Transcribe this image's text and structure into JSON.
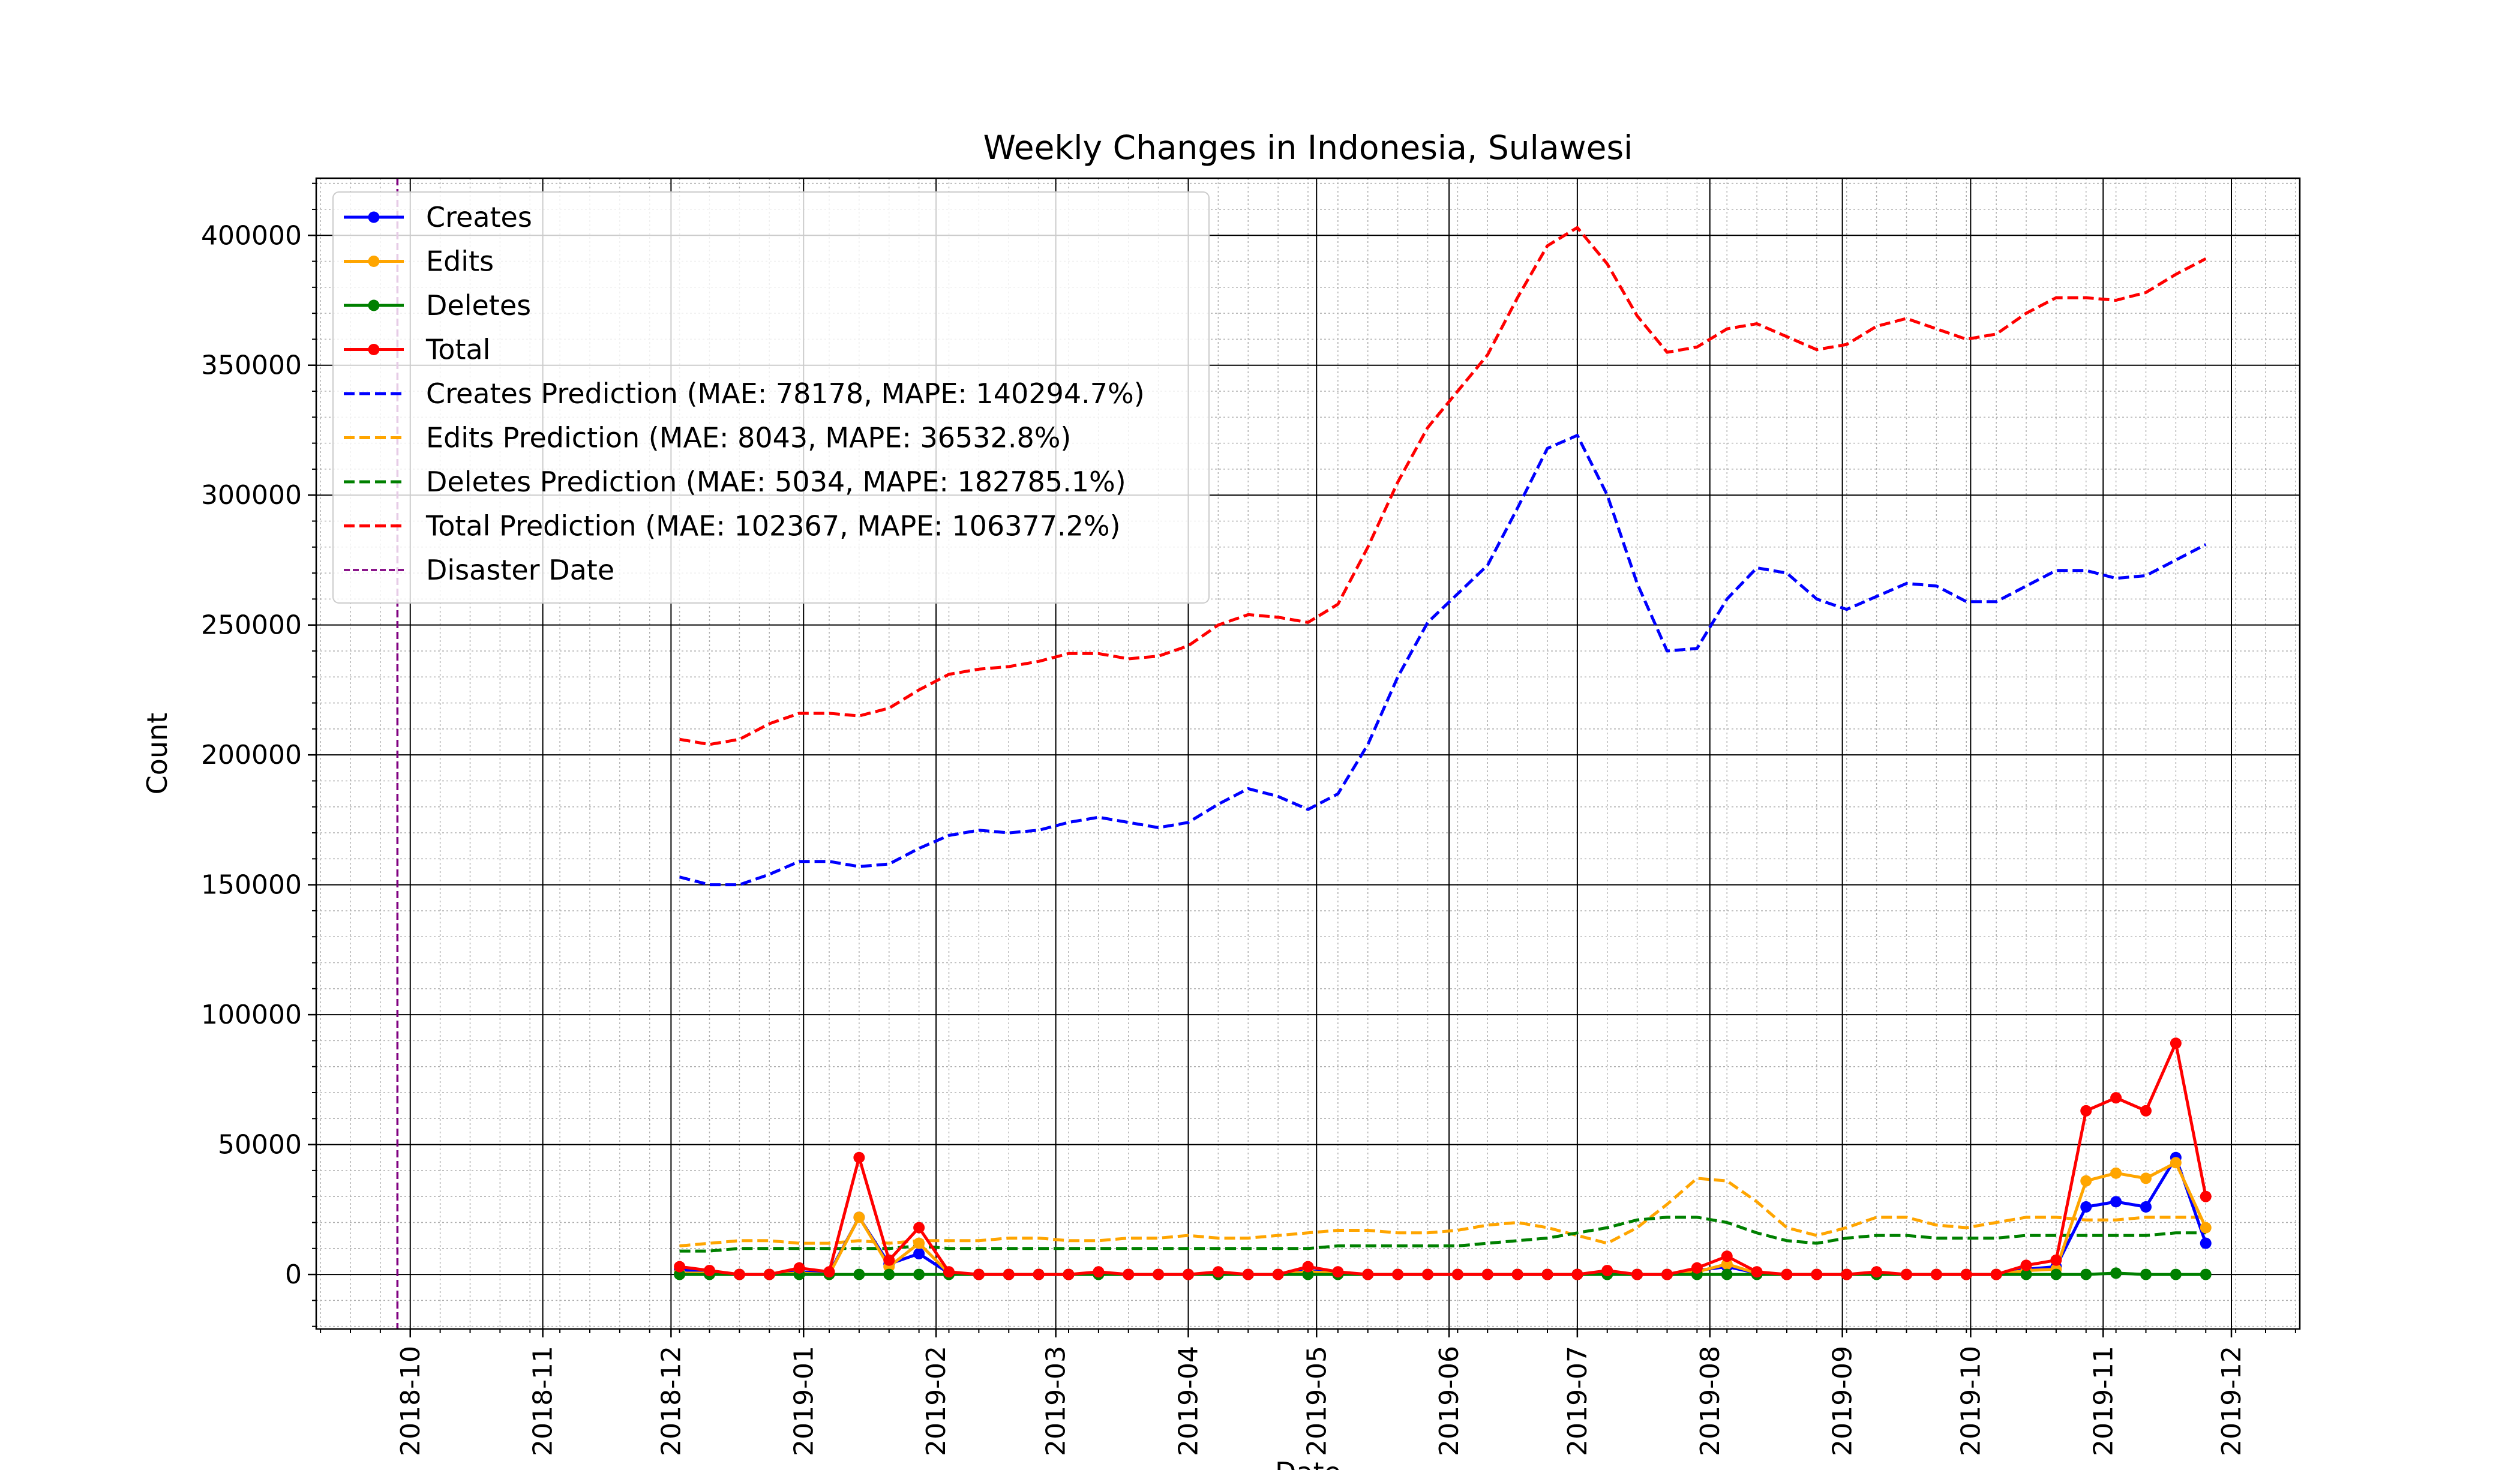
{
  "chart_data": {
    "type": "line",
    "title": "Weekly Changes in Indonesia, Sulawesi",
    "xlabel": "Date",
    "ylabel": "Count",
    "x_axis": {
      "type": "date",
      "range": [
        "2018-09-09",
        "2019-12-17"
      ],
      "tick_labels": [
        "2018-10",
        "2018-11",
        "2018-12",
        "2019-01",
        "2019-02",
        "2019-03",
        "2019-04",
        "2019-05",
        "2019-06",
        "2019-07",
        "2019-08",
        "2019-09",
        "2019-10",
        "2019-11",
        "2019-12"
      ],
      "tick_dates": [
        "2018-10-01",
        "2018-11-01",
        "2018-12-01",
        "2019-01-01",
        "2019-02-01",
        "2019-03-01",
        "2019-04-01",
        "2019-05-01",
        "2019-06-01",
        "2019-07-01",
        "2019-08-01",
        "2019-09-01",
        "2019-10-01",
        "2019-11-01",
        "2019-12-01"
      ]
    },
    "y_axis": {
      "range": [
        -21000,
        422000
      ],
      "ticks": [
        0,
        50000,
        100000,
        150000,
        200000,
        250000,
        300000,
        350000,
        400000
      ],
      "tick_labels": [
        "0",
        "50000",
        "100000",
        "150000",
        "200000",
        "250000",
        "300000",
        "350000",
        "400000"
      ]
    },
    "grid": true,
    "minor_grid": true,
    "legend_placement": "top-left",
    "dates": [
      "2018-12-03",
      "2018-12-10",
      "2018-12-17",
      "2018-12-24",
      "2018-12-31",
      "2019-01-07",
      "2019-01-14",
      "2019-01-21",
      "2019-01-28",
      "2019-02-04",
      "2019-02-11",
      "2019-02-18",
      "2019-02-25",
      "2019-03-04",
      "2019-03-11",
      "2019-03-18",
      "2019-03-25",
      "2019-04-01",
      "2019-04-08",
      "2019-04-15",
      "2019-04-22",
      "2019-04-29",
      "2019-05-06",
      "2019-05-13",
      "2019-05-20",
      "2019-05-27",
      "2019-06-03",
      "2019-06-10",
      "2019-06-17",
      "2019-06-24",
      "2019-07-01",
      "2019-07-08",
      "2019-07-15",
      "2019-07-22",
      "2019-07-29",
      "2019-08-05",
      "2019-08-12",
      "2019-08-19",
      "2019-08-26",
      "2019-09-02",
      "2019-09-09",
      "2019-09-16",
      "2019-09-23",
      "2019-09-30",
      "2019-10-07",
      "2019-10-14",
      "2019-10-21",
      "2019-10-28",
      "2019-11-04",
      "2019-11-11",
      "2019-11-18",
      "2019-11-25"
    ],
    "series": [
      {
        "name": "Creates",
        "style": "solid-marker",
        "color": "#0000ff",
        "values": [
          2000,
          500,
          0,
          0,
          1000,
          500,
          22000,
          4000,
          8000,
          500,
          0,
          0,
          0,
          0,
          500,
          0,
          0,
          0,
          500,
          0,
          0,
          1500,
          500,
          0,
          0,
          0,
          0,
          0,
          0,
          0,
          0,
          500,
          0,
          0,
          1500,
          3000,
          500,
          0,
          0,
          0,
          500,
          0,
          0,
          0,
          0,
          2000,
          3000,
          26000,
          28000,
          26000,
          45000,
          12000
        ]
      },
      {
        "name": "Edits",
        "style": "solid-marker",
        "color": "#ffa500",
        "values": [
          500,
          500,
          0,
          0,
          500,
          0,
          22000,
          3000,
          12000,
          500,
          0,
          0,
          0,
          0,
          500,
          0,
          0,
          0,
          500,
          0,
          0,
          1000,
          500,
          0,
          0,
          0,
          0,
          0,
          0,
          0,
          0,
          500,
          0,
          0,
          1000,
          4000,
          500,
          0,
          0,
          0,
          500,
          0,
          0,
          0,
          0,
          1500,
          2000,
          36000,
          39000,
          37000,
          43000,
          18000
        ]
      },
      {
        "name": "Deletes",
        "style": "solid-marker",
        "color": "#008000",
        "values": [
          0,
          0,
          0,
          0,
          0,
          0,
          0,
          0,
          0,
          0,
          0,
          0,
          0,
          0,
          0,
          0,
          0,
          0,
          0,
          0,
          0,
          0,
          0,
          0,
          0,
          0,
          0,
          0,
          0,
          0,
          0,
          0,
          0,
          0,
          0,
          0,
          0,
          0,
          0,
          0,
          0,
          0,
          0,
          0,
          0,
          0,
          0,
          0,
          500,
          0,
          0,
          0
        ]
      },
      {
        "name": "Total",
        "style": "solid-marker",
        "color": "#ff0000",
        "values": [
          3000,
          1500,
          0,
          0,
          2500,
          1000,
          45000,
          5500,
          18000,
          1000,
          0,
          0,
          0,
          0,
          1000,
          0,
          0,
          0,
          1000,
          0,
          0,
          3000,
          1000,
          0,
          0,
          0,
          0,
          0,
          0,
          0,
          0,
          1500,
          0,
          0,
          2500,
          7000,
          1000,
          0,
          0,
          0,
          1000,
          0,
          0,
          0,
          0,
          3500,
          5500,
          63000,
          68000,
          63000,
          89000,
          30000
        ]
      },
      {
        "name": "Creates Prediction (MAE: 78178, MAPE: 140294.7%)",
        "style": "dashed",
        "color": "#0000ff",
        "values": [
          153000,
          150000,
          150000,
          154000,
          159000,
          159000,
          157000,
          158000,
          164000,
          169000,
          171000,
          170000,
          171000,
          174000,
          176000,
          174000,
          172000,
          174000,
          181000,
          187000,
          184000,
          179000,
          185000,
          204000,
          230000,
          251000,
          262000,
          273000,
          295000,
          318000,
          323000,
          300000,
          266000,
          240000,
          241000,
          260000,
          272000,
          270000,
          260000,
          256000,
          261000,
          266000,
          265000,
          259000,
          259000,
          265000,
          271000,
          271000,
          268000,
          269000,
          275000,
          281000
        ]
      },
      {
        "name": "Edits Prediction (MAE: 8043, MAPE: 36532.8%)",
        "style": "dashed",
        "color": "#ffa500",
        "values": [
          11000,
          12000,
          13000,
          13000,
          12000,
          12000,
          13000,
          12000,
          13000,
          13000,
          13000,
          14000,
          14000,
          13000,
          13000,
          14000,
          14000,
          15000,
          14000,
          14000,
          15000,
          16000,
          17000,
          17000,
          16000,
          16000,
          17000,
          19000,
          20000,
          18000,
          15000,
          12000,
          18000,
          27000,
          37000,
          36000,
          28000,
          18000,
          15000,
          18000,
          22000,
          22000,
          19000,
          18000,
          20000,
          22000,
          22000,
          21000,
          21000,
          22000,
          22000,
          22000
        ]
      },
      {
        "name": "Deletes Prediction (MAE: 5034, MAPE: 182785.1%)",
        "style": "dashed",
        "color": "#008000",
        "values": [
          9000,
          9000,
          10000,
          10000,
          10000,
          10000,
          10000,
          10000,
          11000,
          10000,
          10000,
          10000,
          10000,
          10000,
          10000,
          10000,
          10000,
          10000,
          10000,
          10000,
          10000,
          10000,
          11000,
          11000,
          11000,
          11000,
          11000,
          12000,
          13000,
          14000,
          16000,
          18000,
          21000,
          22000,
          22000,
          20000,
          16000,
          13000,
          12000,
          14000,
          15000,
          15000,
          14000,
          14000,
          14000,
          15000,
          15000,
          15000,
          15000,
          15000,
          16000,
          16000
        ]
      },
      {
        "name": "Total Prediction (MAE: 102367, MAPE: 106377.2%)",
        "style": "dashed",
        "color": "#ff0000",
        "values": [
          206000,
          204000,
          206000,
          212000,
          216000,
          216000,
          215000,
          218000,
          225000,
          231000,
          233000,
          234000,
          236000,
          239000,
          239000,
          237000,
          238000,
          242000,
          250000,
          254000,
          253000,
          251000,
          258000,
          280000,
          305000,
          326000,
          340000,
          354000,
          376000,
          396000,
          403000,
          389000,
          369000,
          355000,
          357000,
          364000,
          366000,
          361000,
          356000,
          358000,
          365000,
          368000,
          364000,
          360000,
          362000,
          370000,
          376000,
          376000,
          375000,
          378000,
          385000,
          391000
        ]
      }
    ],
    "reference_lines": [
      {
        "name": "Disaster Date",
        "date": "2018-09-28",
        "style": "dashed",
        "color": "#800080"
      }
    ]
  }
}
